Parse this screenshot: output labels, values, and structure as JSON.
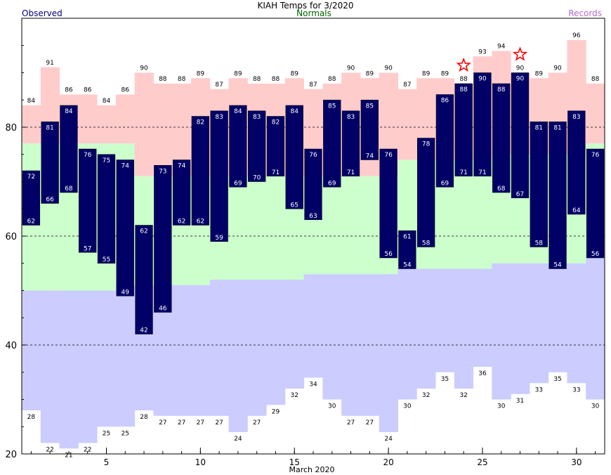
{
  "chart_data": {
    "type": "bar",
    "title": "KIAH Temps for 3/2020",
    "legend": {
      "observed": "Observed",
      "normals": "Normals",
      "records": "Records"
    },
    "xlabel": "March 2020",
    "x_ticks": [
      "5",
      "10",
      "15",
      "20",
      "25",
      "30"
    ],
    "y_ticks": [
      "20",
      "40",
      "60",
      "80"
    ],
    "ylim": [
      20,
      100
    ],
    "xlim": [
      0.5,
      31.5
    ],
    "grid": "dashed horizontal at 40, 60, 80",
    "colors": {
      "observed": "#000066",
      "normal_band": "#ccffcc",
      "record_high_band": "#ffcccc",
      "record_low_band": "#ccccff",
      "record_marker": "#ff0000",
      "observed_label": "#000080",
      "normals_label": "#006400",
      "records_label": "#b26bcf"
    },
    "days": [
      1,
      2,
      3,
      4,
      5,
      6,
      7,
      8,
      9,
      10,
      11,
      12,
      13,
      14,
      15,
      16,
      17,
      18,
      19,
      20,
      21,
      22,
      23,
      24,
      25,
      26,
      27,
      28,
      29,
      30,
      31
    ],
    "observed_high": [
      72,
      81,
      84,
      76,
      75,
      74,
      62,
      73,
      74,
      82,
      83,
      84,
      83,
      82,
      84,
      76,
      85,
      83,
      85,
      76,
      61,
      78,
      86,
      88,
      90,
      88,
      90,
      81,
      81,
      83,
      76
    ],
    "observed_low": [
      62,
      66,
      68,
      57,
      55,
      49,
      42,
      46,
      62,
      62,
      59,
      69,
      70,
      71,
      65,
      63,
      69,
      71,
      74,
      56,
      54,
      58,
      69,
      71,
      71,
      68,
      67,
      58,
      54,
      64,
      56
    ],
    "normal_high": [
      77,
      77,
      77,
      77,
      77,
      77,
      71,
      71,
      71,
      71,
      71,
      71,
      71,
      71,
      71,
      71,
      71,
      71,
      71,
      71,
      74,
      74,
      74,
      74,
      74,
      75,
      75,
      75,
      75,
      75,
      77
    ],
    "normal_low": [
      50,
      50,
      50,
      50,
      50,
      51,
      51,
      51,
      51,
      51,
      52,
      52,
      52,
      52,
      52,
      53,
      53,
      53,
      53,
      53,
      54,
      54,
      54,
      54,
      54,
      55,
      55,
      55,
      55,
      55,
      56
    ],
    "record_high": [
      84,
      91,
      86,
      86,
      84,
      86,
      90,
      88,
      88,
      89,
      87,
      89,
      88,
      88,
      89,
      87,
      88,
      90,
      89,
      90,
      87,
      89,
      89,
      88,
      93,
      94,
      90,
      89,
      90,
      96,
      88
    ],
    "record_low": [
      28,
      22,
      21,
      22,
      25,
      25,
      28,
      27,
      27,
      27,
      27,
      24,
      27,
      29,
      32,
      34,
      30,
      27,
      27,
      24,
      30,
      32,
      35,
      32,
      36,
      30,
      31,
      33,
      35,
      33,
      30
    ],
    "record_set_days": [
      24,
      27
    ]
  }
}
